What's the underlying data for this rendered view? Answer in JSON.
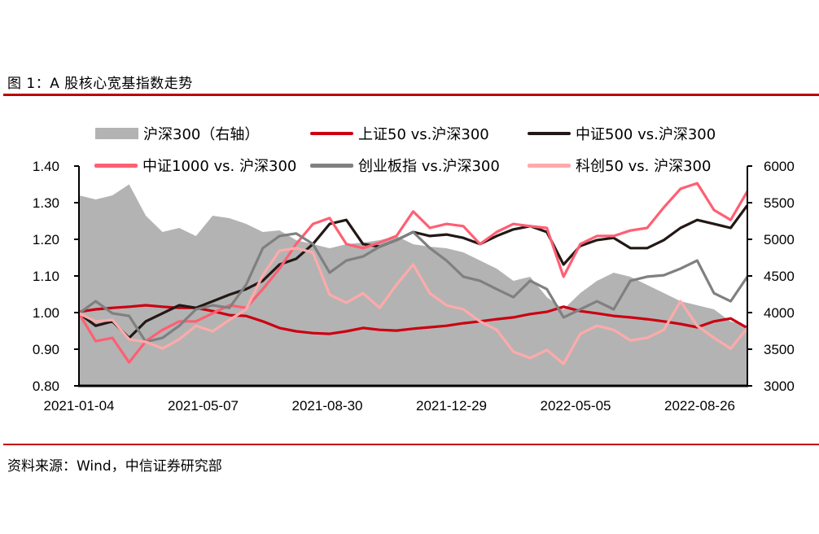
{
  "title": "图 1：A 股核心宽基指数走势",
  "source": "资料来源：Wind，中信证券研究部",
  "chart_data": {
    "type": "line",
    "title": "A 股核心宽基指数走势",
    "x_start": "2021-01-04",
    "x_end": "2022-10",
    "x_tick_labels": [
      "2021-01-04",
      "2021-05-07",
      "2021-08-30",
      "2021-12-29",
      "2022-05-05",
      "2022-08-26"
    ],
    "y_left": {
      "range": [
        0.8,
        1.4
      ],
      "ticks": [
        "0.80",
        "0.90",
        "1.00",
        "1.10",
        "1.20",
        "1.30",
        "1.40"
      ]
    },
    "y_right": {
      "range": [
        3000,
        6000
      ],
      "ticks": [
        "3000",
        "3500",
        "4000",
        "4500",
        "5000",
        "5500",
        "6000"
      ]
    },
    "legend_position": "top",
    "series": [
      {
        "name": "沪深300（右轴）",
        "kind": "area",
        "axis": "right",
        "color": "#b3b3b3",
        "values": [
          5600,
          5544,
          5600,
          5750,
          5322,
          5100,
          5156,
          5044,
          5322,
          5289,
          5211,
          5100,
          5122,
          4989,
          4933,
          4878,
          4933,
          4956,
          4989,
          5044,
          4933,
          4900,
          4878,
          4822,
          4711,
          4600,
          4433,
          4489,
          4211,
          4044,
          4267,
          4433,
          4544,
          4489,
          4378,
          4267,
          4156,
          4100,
          4044,
          3878,
          3822
        ]
      },
      {
        "name": "上证50 vs.沪深300",
        "kind": "line",
        "axis": "left",
        "color": "#cc0011",
        "values": [
          1.002,
          1.009,
          1.013,
          1.016,
          1.02,
          1.016,
          1.013,
          1.013,
          1.004,
          0.993,
          0.991,
          0.976,
          0.958,
          0.949,
          0.944,
          0.942,
          0.949,
          0.958,
          0.953,
          0.951,
          0.956,
          0.96,
          0.964,
          0.971,
          0.976,
          0.982,
          0.987,
          0.996,
          1.002,
          1.016,
          1.004,
          0.998,
          0.991,
          0.987,
          0.982,
          0.976,
          0.969,
          0.96,
          0.976,
          0.984,
          0.958
        ]
      },
      {
        "name": "中证500 vs.沪深300",
        "kind": "line",
        "axis": "left",
        "color": "#231815",
        "values": [
          0.998,
          0.964,
          0.976,
          0.931,
          0.976,
          0.998,
          1.02,
          1.013,
          1.031,
          1.049,
          1.064,
          1.087,
          1.131,
          1.147,
          1.187,
          1.242,
          1.253,
          1.187,
          1.18,
          1.198,
          1.22,
          1.209,
          1.213,
          1.204,
          1.187,
          1.209,
          1.227,
          1.236,
          1.22,
          1.131,
          1.182,
          1.198,
          1.204,
          1.176,
          1.176,
          1.198,
          1.231,
          1.253,
          1.242,
          1.231,
          1.293
        ]
      },
      {
        "name": "中证1000 vs. 沪深300",
        "kind": "line",
        "axis": "left",
        "color": "#ff5f73",
        "values": [
          0.998,
          0.922,
          0.931,
          0.864,
          0.922,
          0.953,
          0.976,
          0.976,
          0.998,
          1.02,
          1.013,
          1.064,
          1.12,
          1.187,
          1.242,
          1.258,
          1.187,
          1.176,
          1.191,
          1.209,
          1.276,
          1.231,
          1.242,
          1.236,
          1.187,
          1.22,
          1.242,
          1.236,
          1.231,
          1.098,
          1.187,
          1.209,
          1.209,
          1.224,
          1.231,
          1.287,
          1.338,
          1.353,
          1.28,
          1.253,
          1.331
        ]
      },
      {
        "name": "创业板指 vs.沪深300",
        "kind": "line",
        "axis": "left",
        "color": "#808080",
        "values": [
          0.998,
          1.031,
          0.998,
          0.991,
          0.92,
          0.931,
          0.964,
          1.009,
          1.02,
          1.013,
          1.076,
          1.176,
          1.209,
          1.216,
          1.187,
          1.109,
          1.142,
          1.153,
          1.18,
          1.198,
          1.22,
          1.176,
          1.142,
          1.098,
          1.087,
          1.064,
          1.042,
          1.087,
          1.064,
          0.987,
          1.009,
          1.031,
          1.009,
          1.087,
          1.098,
          1.102,
          1.12,
          1.142,
          1.053,
          1.031,
          1.098
        ]
      },
      {
        "name": "科创50 vs. 沪深300",
        "kind": "line",
        "axis": "left",
        "color": "#ffaaaa",
        "values": [
          0.998,
          0.976,
          0.98,
          0.927,
          0.92,
          0.902,
          0.927,
          0.964,
          0.949,
          0.98,
          1.009,
          1.102,
          1.169,
          1.176,
          1.164,
          1.049,
          1.027,
          1.053,
          1.013,
          1.076,
          1.131,
          1.053,
          1.02,
          1.009,
          0.976,
          0.953,
          0.893,
          0.876,
          0.898,
          0.86,
          0.942,
          0.964,
          0.953,
          0.924,
          0.931,
          0.953,
          1.031,
          0.964,
          0.931,
          0.902,
          0.958
        ]
      }
    ]
  }
}
